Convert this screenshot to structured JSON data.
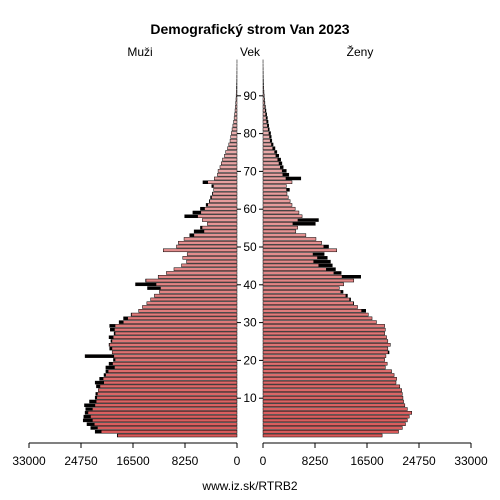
{
  "chart_data": {
    "type": "bar",
    "title": "Demografický strom Van 2023",
    "left_label": "Muži",
    "center_label": "Vek",
    "right_label": "Ženy",
    "source": "www.iz.sk/RTRB2",
    "x_ticks_left": [
      "33000",
      "24750",
      "16500",
      "8250",
      "0"
    ],
    "x_ticks_right": [
      "0",
      "8250",
      "16500",
      "24750",
      "33000"
    ],
    "x_tick_values": [
      33000,
      24750,
      16500,
      8250,
      0
    ],
    "age_ticks": [
      10,
      20,
      30,
      40,
      50,
      60,
      70,
      80,
      90
    ],
    "xlim": [
      0,
      33000
    ],
    "age_range": [
      0,
      99
    ],
    "colors": {
      "bar_fill": "#e07f7f",
      "bar_fill_young": "#d95a5a",
      "bar_fill_old": "#eab0b0",
      "excess": "#000000",
      "stroke": "#000000"
    },
    "series": [
      {
        "name": "Muži",
        "values": [
          19000,
          22500,
          23200,
          23800,
          24400,
          24300,
          24100,
          24000,
          24200,
          23400,
          22500,
          22400,
          22000,
          22300,
          22500,
          21800,
          21100,
          20800,
          20800,
          20300,
          19600,
          24100,
          19800,
          20200,
          20300,
          20000,
          20300,
          19500,
          20100,
          20200,
          18700,
          18000,
          16800,
          15600,
          15000,
          14300,
          13700,
          13100,
          12300,
          14200,
          16100,
          14500,
          12500,
          11200,
          10000,
          8800,
          8000,
          8600,
          7900,
          11700,
          9600,
          9300,
          8400,
          7500,
          6800,
          5800,
          4700,
          5500,
          8300,
          7000,
          5800,
          4900,
          4400,
          4200,
          3900,
          3700,
          4000,
          5400,
          3600,
          3100,
          3000,
          2700,
          2500,
          2300,
          2000,
          1800,
          1500,
          1300,
          1100,
          1000,
          900,
          780,
          650,
          540,
          450,
          380,
          310,
          250,
          200,
          160,
          130,
          100,
          80,
          60,
          40,
          30,
          20,
          15,
          10,
          6
        ]
      },
      {
        "name": "Ženy",
        "values": [
          18900,
          21500,
          22100,
          22600,
          22900,
          23200,
          23600,
          22900,
          22500,
          22300,
          22200,
          22100,
          22000,
          21700,
          21100,
          21200,
          20800,
          20400,
          19400,
          19700,
          19300,
          19500,
          20000,
          19800,
          20200,
          19800,
          19600,
          19300,
          19400,
          19300,
          18000,
          17300,
          16700,
          16300,
          15000,
          14400,
          13900,
          13400,
          12700,
          12100,
          12800,
          14400,
          15500,
          12400,
          11500,
          11000,
          10700,
          10200,
          9700,
          11700,
          10400,
          9300,
          8400,
          6800,
          5200,
          5500,
          8300,
          8800,
          6200,
          5700,
          5100,
          4600,
          4300,
          4000,
          3800,
          4200,
          3700,
          4600,
          6000,
          4100,
          3700,
          3200,
          3000,
          2800,
          2500,
          2200,
          1900,
          1600,
          1400,
          1300,
          1200,
          1000,
          900,
          800,
          700,
          580,
          470,
          380,
          300,
          240,
          190,
          150,
          110,
          80,
          60,
          40,
          30,
          20,
          12,
          8
        ]
      }
    ]
  }
}
